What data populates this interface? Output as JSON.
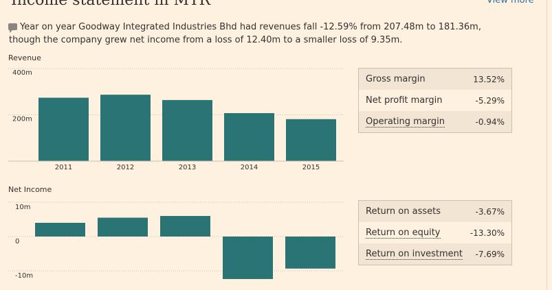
{
  "header": {
    "title": "Income statement in MYR",
    "view_more": "View more"
  },
  "summary": "Year on year Goodway Integrated Industries Bhd had revenues fall -12.59% from 207.48m to 181.36m, though the company grew net income from a loss of 12.40m to a smaller loss of 9.35m.",
  "colors": {
    "bar": "#2a7475",
    "background": "#fff1e0"
  },
  "chart_data": [
    {
      "type": "bar",
      "title": "Revenue",
      "categories": [
        "2011",
        "2012",
        "2013",
        "2014",
        "2015"
      ],
      "values": [
        274,
        287,
        264,
        207.48,
        181.36
      ],
      "ylim": [
        0,
        400
      ],
      "yticks": [
        {
          "value": 400,
          "label": "400m"
        },
        {
          "value": 200,
          "label": "200m"
        }
      ],
      "unit": "m MYR"
    },
    {
      "type": "bar",
      "title": "Net Income",
      "categories": [
        "2011",
        "2012",
        "2013",
        "2014",
        "2015"
      ],
      "values": [
        4,
        5.5,
        6,
        -12.4,
        -9.35
      ],
      "ylim": [
        -12,
        10
      ],
      "yticks": [
        {
          "value": 10,
          "label": "10m"
        },
        {
          "value": 0,
          "label": "0"
        },
        {
          "value": -10,
          "label": "-10m"
        }
      ],
      "unit": "m MYR"
    }
  ],
  "revenue_stats": [
    {
      "label": "Gross margin",
      "value": "13.52%"
    },
    {
      "label": "Net profit margin",
      "value": "-5.29%"
    },
    {
      "label": "Operating margin",
      "value": "-0.94%"
    }
  ],
  "income_stats": [
    {
      "label": "Return on assets",
      "value": "-3.67%"
    },
    {
      "label": "Return on equity",
      "value": "-13.30%"
    },
    {
      "label": "Return on investment",
      "value": "-7.69%"
    }
  ]
}
